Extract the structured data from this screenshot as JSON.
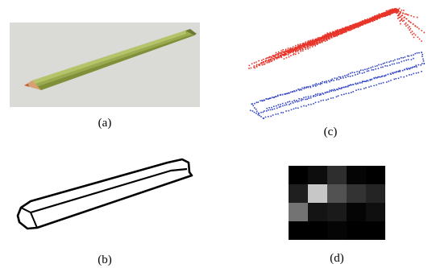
{
  "figure": {
    "panels": [
      {
        "id": "a",
        "caption": "(a)",
        "description_kind": "rendered-pencil"
      },
      {
        "id": "b",
        "caption": "(b)",
        "description_kind": "outline-contour"
      },
      {
        "id": "c",
        "caption": "(c)",
        "description_kind": "point-correspondences"
      },
      {
        "id": "d",
        "caption": "(d)",
        "description_kind": "grayscale-heatmap"
      }
    ]
  },
  "colors": {
    "pencil_body": "#9aaa4e",
    "pencil_shade": "#7f8f3a",
    "pencil_tip_wood": "#d8a070",
    "pencil_lead": "#c0603a",
    "photo_background": "#dadad6",
    "correspondence_red": "#e8352a",
    "correspondence_blue": "#3446c8"
  },
  "heatmap": {
    "rows": 4,
    "cols": 5,
    "values": [
      [
        0.0,
        0.05,
        0.18,
        0.02,
        0.0
      ],
      [
        0.12,
        0.78,
        0.32,
        0.2,
        0.14
      ],
      [
        0.45,
        0.08,
        0.1,
        0.02,
        0.06
      ],
      [
        0.0,
        0.0,
        0.02,
        0.0,
        0.0
      ]
    ]
  }
}
